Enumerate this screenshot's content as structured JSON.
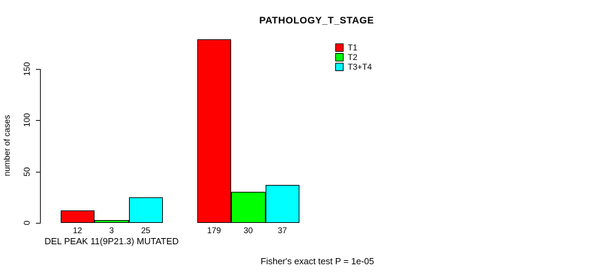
{
  "chart_data": {
    "type": "bar",
    "title": "PATHOLOGY_T_STAGE",
    "xlabel": "",
    "ylabel": "number of cases",
    "ylim": [
      0,
      150
    ],
    "yticks": [
      0,
      50,
      100,
      150
    ],
    "grid": false,
    "legend_position": "top-right",
    "series": [
      {
        "name": "T1",
        "color": "#FF0000"
      },
      {
        "name": "T2",
        "color": "#00FF00"
      },
      {
        "name": "T3+T4",
        "color": "#00FFFF"
      }
    ],
    "groups": [
      {
        "label": "DEL PEAK 11(9P21.3) MUTATED",
        "values": [
          12,
          3,
          25
        ]
      },
      {
        "label": "",
        "values": [
          179,
          30,
          37
        ]
      }
    ],
    "bar_value_labels": [
      "12",
      "3",
      "25",
      "179",
      "30",
      "37"
    ],
    "annotation": "Fisher's exact test P = 1e-05"
  }
}
